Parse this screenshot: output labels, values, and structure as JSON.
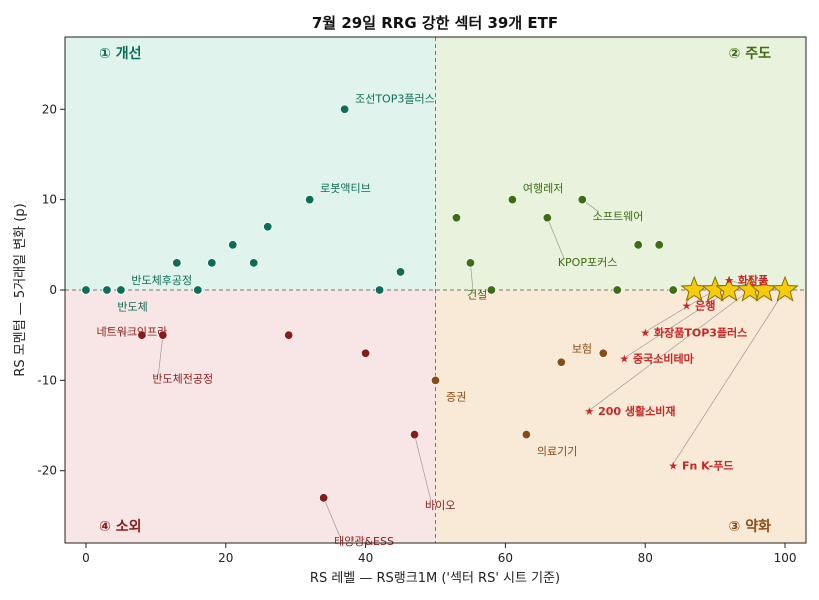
{
  "chart_data": {
    "type": "scatter",
    "title": "7월 29일 RRG 강한 섹터 39개 ETF",
    "xlabel": "RS 레벨 — RS랭크1M ('섹터 RS' 시트 기준)",
    "ylabel": "RS 모멘텀 — 5거래일 변화 (p)",
    "xlim": [
      -3,
      103
    ],
    "ylim": [
      -28,
      28
    ],
    "x_ticks": [
      0,
      20,
      40,
      60,
      80,
      100
    ],
    "y_ticks": [
      -20,
      -10,
      0,
      10,
      20
    ],
    "x_tick_labels": [
      "0",
      "20",
      "40",
      "60",
      "80",
      "100"
    ],
    "y_tick_labels": [
      "-20",
      "-10",
      "0",
      "10",
      "20"
    ],
    "x_mid": 50,
    "y_mid": 0,
    "colors": {
      "improving": "#0b6e57",
      "leading": "#3c6e12",
      "lagging": "#8b1a1a",
      "weakening": "#8a4b12",
      "bg_improving": "#e0f3ec",
      "bg_leading": "#e8f2dc",
      "bg_lagging": "#f8e6e6",
      "bg_weakening": "#f8ead7",
      "star_fill": "#f5cc0b",
      "star_stroke": "#8a6d00",
      "star_label": "#c62828"
    },
    "quadrants": [
      {
        "key": "improving",
        "label": "① 개선"
      },
      {
        "key": "leading",
        "label": "② 주도"
      },
      {
        "key": "weakening",
        "label": "③ 약화"
      },
      {
        "key": "lagging",
        "label": "④ 소외"
      }
    ],
    "points": [
      {
        "x": 0,
        "y": 0,
        "q": "improving"
      },
      {
        "x": 3,
        "y": 0,
        "q": "improving"
      },
      {
        "x": 5,
        "y": 0,
        "q": "improving",
        "label": "반도체",
        "lx": 4.5,
        "ly": -1.8
      },
      {
        "x": 13,
        "y": 3,
        "q": "improving"
      },
      {
        "x": 16,
        "y": 0,
        "q": "improving",
        "label": "반도체후공정",
        "lx": 6.5,
        "ly": 1.1
      },
      {
        "x": 18,
        "y": 3,
        "q": "improving"
      },
      {
        "x": 21,
        "y": 5,
        "q": "improving"
      },
      {
        "x": 24,
        "y": 3,
        "q": "improving"
      },
      {
        "x": 26,
        "y": 7,
        "q": "improving"
      },
      {
        "x": 32,
        "y": 10,
        "q": "improving",
        "label": "로봇액티브",
        "lx": 33.5,
        "ly": 11.3
      },
      {
        "x": 37,
        "y": 20,
        "q": "improving",
        "label": "조선TOP3플러스",
        "lx": 38.5,
        "ly": 21.2
      },
      {
        "x": 42,
        "y": 0,
        "q": "improving"
      },
      {
        "x": 45,
        "y": 2,
        "q": "improving"
      },
      {
        "x": 8,
        "y": -5,
        "q": "lagging",
        "label": "네트워크인프라",
        "lx": 1.5,
        "ly": -4.6,
        "line": true
      },
      {
        "x": 11,
        "y": -5,
        "q": "lagging",
        "label": "반도체전공정",
        "lx": 9.5,
        "ly": -9.8,
        "line": true
      },
      {
        "x": 29,
        "y": -5,
        "q": "lagging"
      },
      {
        "x": 40,
        "y": -7,
        "q": "lagging"
      },
      {
        "x": 34,
        "y": -23,
        "q": "lagging",
        "label": "태양광&ESS",
        "lx": 35.5,
        "ly": -27.8,
        "line": true
      },
      {
        "x": 47,
        "y": -16,
        "q": "lagging",
        "label": "바이오",
        "lx": 48.5,
        "ly": -23.8,
        "line": true
      },
      {
        "x": 53,
        "y": 8,
        "q": "leading"
      },
      {
        "x": 55,
        "y": 3,
        "q": "leading",
        "label": "건설",
        "lx": 54.5,
        "ly": -0.5,
        "line": true
      },
      {
        "x": 58,
        "y": 0,
        "q": "leading"
      },
      {
        "x": 61,
        "y": 10,
        "q": "leading",
        "label": "여행레저",
        "lx": 62.5,
        "ly": 11.3
      },
      {
        "x": 66,
        "y": 8,
        "q": "leading",
        "label": "KPOP포커스",
        "lx": 67.5,
        "ly": 3.1,
        "line": true
      },
      {
        "x": 71,
        "y": 10,
        "q": "leading",
        "label": "소프트웨어",
        "lx": 72.5,
        "ly": 8.2,
        "line": true
      },
      {
        "x": 76,
        "y": 0,
        "q": "leading"
      },
      {
        "x": 79,
        "y": 5,
        "q": "leading"
      },
      {
        "x": 82,
        "y": 5,
        "q": "leading"
      },
      {
        "x": 84,
        "y": 0,
        "q": "leading"
      },
      {
        "x": 50,
        "y": -10,
        "q": "weakening",
        "label": "증권",
        "lx": 51.5,
        "ly": -11.8
      },
      {
        "x": 63,
        "y": -16,
        "q": "weakening",
        "label": "의료기기",
        "lx": 64.5,
        "ly": -17.8
      },
      {
        "x": 68,
        "y": -8,
        "q": "weakening"
      },
      {
        "x": 74,
        "y": -7,
        "q": "weakening",
        "label": "보험",
        "lx": 69.5,
        "ly": -6.5
      }
    ],
    "stars": [
      {
        "x": 87,
        "y": 0
      },
      {
        "x": 90,
        "y": 0
      },
      {
        "x": 92,
        "y": 0
      },
      {
        "x": 95,
        "y": 0
      },
      {
        "x": 97,
        "y": 0
      },
      {
        "x": 100,
        "y": 0
      }
    ],
    "star_labels": [
      {
        "label": "★ 화장품",
        "lx": 91.3,
        "ly": 1.1,
        "sx": 97,
        "sy": 0
      },
      {
        "label": "★ 은행",
        "lx": 85.2,
        "ly": -1.7,
        "sx": 87,
        "sy": 0
      },
      {
        "label": "★ 화장품TOP3플러스",
        "lx": 79.3,
        "ly": -4.7,
        "sx": 90,
        "sy": 0
      },
      {
        "label": "★ 중국소비테마",
        "lx": 76.3,
        "ly": -7.6,
        "sx": 92,
        "sy": 0
      },
      {
        "label": "★ 200 생활소비재",
        "lx": 71.3,
        "ly": -13.4,
        "sx": 95,
        "sy": 0
      },
      {
        "label": "★ Fn K-푸드",
        "lx": 83.3,
        "ly": -19.4,
        "sx": 100,
        "sy": 0
      }
    ]
  }
}
